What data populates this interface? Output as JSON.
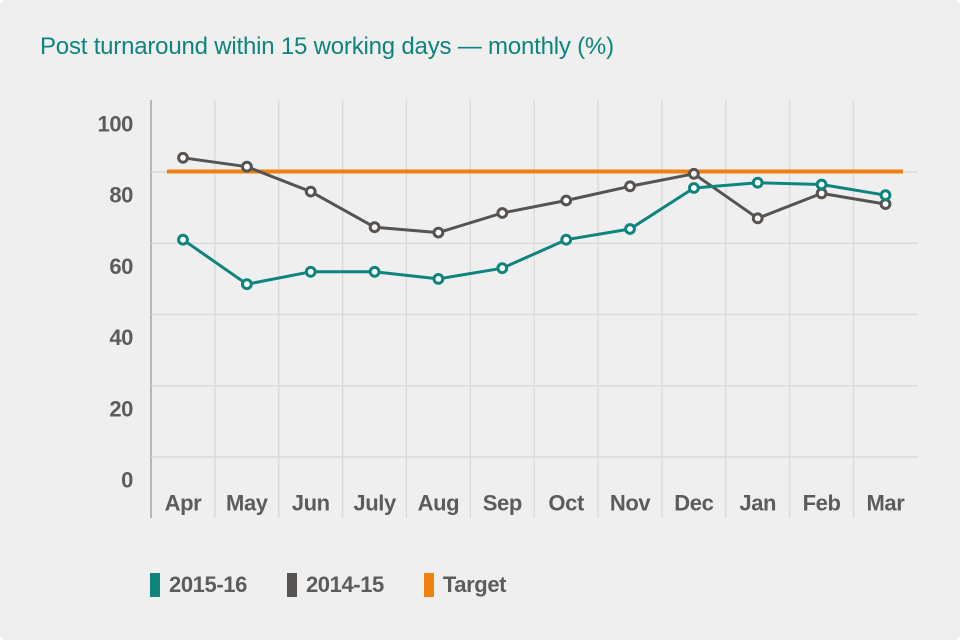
{
  "page": {
    "background": "#F0EFEF"
  },
  "title": {
    "text": "Post turnaround within 15 working days — monthly (%)",
    "color": "#0E847E"
  },
  "axis": {
    "label_color": "#5E5B5B",
    "gridline_color": "#DBDADA",
    "axis_line_color": "#A9A7A7"
  },
  "chart_data": {
    "type": "line",
    "title": "Post turnaround within 15 working days — monthly (%)",
    "categories": [
      "Apr",
      "May",
      "Jun",
      "July",
      "Aug",
      "Sep",
      "Oct",
      "Nov",
      "Dec",
      "Jan",
      "Feb",
      "Mar"
    ],
    "xlabel": "",
    "ylabel": "",
    "ylim": [
      0,
      100
    ],
    "y_ticks": [
      0,
      20,
      40,
      60,
      80,
      100
    ],
    "grid": "horizontal gridlines at 0-80 plus vertical month separators",
    "legend_position": "bottom-left",
    "marker": "open-circle",
    "series": [
      {
        "name": "2015-16",
        "color": "#0E847E",
        "values": [
          61,
          48.5,
          52,
          52,
          50,
          53,
          61,
          64,
          75.5,
          77,
          76.5,
          73.5
        ]
      },
      {
        "name": "2014-15",
        "color": "#575350",
        "values": [
          84,
          81.5,
          74.5,
          64.5,
          63,
          68.5,
          72,
          76,
          79.5,
          67,
          74,
          71
        ]
      }
    ],
    "target": {
      "name": "Target",
      "value": 80,
      "color": "#EF820D"
    }
  },
  "legend": {
    "items": [
      {
        "label": "2015-16",
        "color": "#0E847E"
      },
      {
        "label": "2014-15",
        "color": "#575350"
      },
      {
        "label": "Target",
        "color": "#EF820D"
      }
    ]
  }
}
